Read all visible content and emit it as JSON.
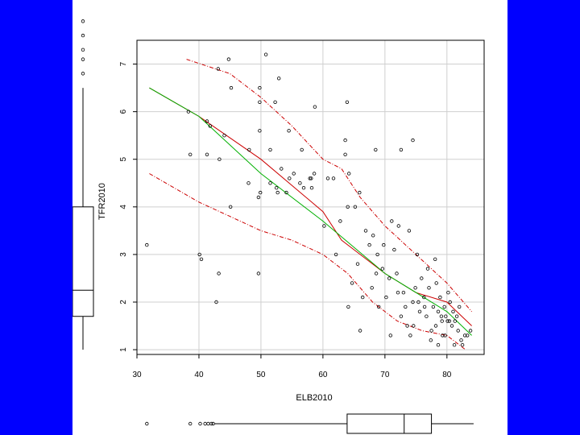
{
  "chart_data": {
    "type": "scatter",
    "xlabel": "ELB2010",
    "ylabel": "TFR2010",
    "xlim": [
      30,
      86
    ],
    "ylim": [
      0.9,
      7.5
    ],
    "xticks": [
      30,
      40,
      50,
      60,
      70,
      80
    ],
    "yticks": [
      1,
      2,
      3,
      4,
      5,
      6,
      7
    ],
    "grid": true,
    "points": [
      [
        44.8,
        7.1
      ],
      [
        50.8,
        7.2
      ],
      [
        45.2,
        6.5
      ],
      [
        49.8,
        6.5
      ],
      [
        49.8,
        6.2
      ],
      [
        52.9,
        6.7
      ],
      [
        52.3,
        6.2
      ],
      [
        38.3,
        6.0
      ],
      [
        41.3,
        5.8
      ],
      [
        41.8,
        5.7
      ],
      [
        43.1,
        6.9
      ],
      [
        58.7,
        6.1
      ],
      [
        63.9,
        6.2
      ],
      [
        38.6,
        5.1
      ],
      [
        41.3,
        5.1
      ],
      [
        43.3,
        5.0
      ],
      [
        44.1,
        5.5
      ],
      [
        48.1,
        5.2
      ],
      [
        49.8,
        5.6
      ],
      [
        51.5,
        5.2
      ],
      [
        53.3,
        4.8
      ],
      [
        54.5,
        5.6
      ],
      [
        56.6,
        5.2
      ],
      [
        57.9,
        4.6
      ],
      [
        63.6,
        5.4
      ],
      [
        63.6,
        5.1
      ],
      [
        68.5,
        5.2
      ],
      [
        72.6,
        5.2
      ],
      [
        74.5,
        5.4
      ],
      [
        45.1,
        4.0
      ],
      [
        48.0,
        4.5
      ],
      [
        49.6,
        4.2
      ],
      [
        49.9,
        4.3
      ],
      [
        51.5,
        4.5
      ],
      [
        52.5,
        4.4
      ],
      [
        52.7,
        4.3
      ],
      [
        54.1,
        4.3
      ],
      [
        54.6,
        4.6
      ],
      [
        55.3,
        4.7
      ],
      [
        56.3,
        4.5
      ],
      [
        56.9,
        4.4
      ],
      [
        58.1,
        4.6
      ],
      [
        58.2,
        4.4
      ],
      [
        58.6,
        4.7
      ],
      [
        60.2,
        3.6
      ],
      [
        60.8,
        4.6
      ],
      [
        61.7,
        4.6
      ],
      [
        62.8,
        3.7
      ],
      [
        64.0,
        4.0
      ],
      [
        64.2,
        4.7
      ],
      [
        65.2,
        4.0
      ],
      [
        65.9,
        4.3
      ],
      [
        31.6,
        3.2
      ],
      [
        40.1,
        3.0
      ],
      [
        40.4,
        2.9
      ],
      [
        42.8,
        2.0
      ],
      [
        43.2,
        2.6
      ],
      [
        49.6,
        2.6
      ],
      [
        62.1,
        3.0
      ],
      [
        64.1,
        1.9
      ],
      [
        64.7,
        2.4
      ],
      [
        66.0,
        1.4
      ],
      [
        66.4,
        2.1
      ],
      [
        66.9,
        3.5
      ],
      [
        67.5,
        3.2
      ],
      [
        67.9,
        2.3
      ],
      [
        68.1,
        3.4
      ],
      [
        68.6,
        2.6
      ],
      [
        69.6,
        2.7
      ],
      [
        69.8,
        3.2
      ],
      [
        70.2,
        2.1
      ],
      [
        70.7,
        2.5
      ],
      [
        71.1,
        3.7
      ],
      [
        71.5,
        3.1
      ],
      [
        71.9,
        2.6
      ],
      [
        72.2,
        3.6
      ],
      [
        72.6,
        1.7
      ],
      [
        73.0,
        2.2
      ],
      [
        73.3,
        1.9
      ],
      [
        73.9,
        3.5
      ],
      [
        74.1,
        1.3
      ],
      [
        74.5,
        2.0
      ],
      [
        74.6,
        1.5
      ],
      [
        75.2,
        3.0
      ],
      [
        75.6,
        1.8
      ],
      [
        76.3,
        2.1
      ],
      [
        76.7,
        1.7
      ],
      [
        77.1,
        2.3
      ],
      [
        77.5,
        1.4
      ],
      [
        77.8,
        1.9
      ],
      [
        78.1,
        2.9
      ],
      [
        78.2,
        1.5
      ],
      [
        78.6,
        1.8
      ],
      [
        78.9,
        2.1
      ],
      [
        79.2,
        1.6
      ],
      [
        79.3,
        1.3
      ],
      [
        79.8,
        1.7
      ],
      [
        80.1,
        1.6
      ],
      [
        80.5,
        2.0
      ],
      [
        80.8,
        1.5
      ],
      [
        81.0,
        1.8
      ],
      [
        81.3,
        1.6
      ],
      [
        81.8,
        1.4
      ],
      [
        82.3,
        1.2
      ],
      [
        82.9,
        1.3
      ],
      [
        83.3,
        1.3
      ],
      [
        79.1,
        1.7
      ],
      [
        79.6,
        1.9
      ],
      [
        80.4,
        1.6
      ],
      [
        81.6,
        1.7
      ],
      [
        75.9,
        2.5
      ],
      [
        76.4,
        1.9
      ],
      [
        74.9,
        2.3
      ],
      [
        73.6,
        1.5
      ],
      [
        70.9,
        1.3
      ],
      [
        69.0,
        1.9
      ],
      [
        65.6,
        2.8
      ],
      [
        68.8,
        3.0
      ],
      [
        72.1,
        2.2
      ],
      [
        82.0,
        1.9
      ],
      [
        83.8,
        1.4
      ],
      [
        78.3,
        2.4
      ],
      [
        80.2,
        2.2
      ],
      [
        77.4,
        1.2
      ],
      [
        79.7,
        1.3
      ],
      [
        81.2,
        1.1
      ],
      [
        82.5,
        1.1
      ],
      [
        76.9,
        2.7
      ],
      [
        75.4,
        2.0
      ],
      [
        78.6,
        1.1
      ]
    ],
    "fit_line": [
      [
        32,
        6.5
      ],
      [
        40,
        5.9
      ],
      [
        50,
        4.7
      ],
      [
        60,
        3.7
      ],
      [
        70,
        2.6
      ],
      [
        80,
        1.8
      ],
      [
        84,
        1.3
      ]
    ],
    "smooth_line": [
      [
        32,
        6.5
      ],
      [
        40,
        5.9
      ],
      [
        50,
        5.0
      ],
      [
        60,
        3.9
      ],
      [
        63,
        3.3
      ],
      [
        66,
        3.0
      ],
      [
        70,
        2.6
      ],
      [
        75,
        2.2
      ],
      [
        80,
        2.0
      ],
      [
        84,
        1.5
      ]
    ],
    "upper_band": [
      [
        38,
        7.1
      ],
      [
        45,
        6.8
      ],
      [
        50,
        6.3
      ],
      [
        55,
        5.7
      ],
      [
        60,
        5.0
      ],
      [
        63,
        4.8
      ],
      [
        66,
        4.2
      ],
      [
        70,
        3.6
      ],
      [
        75,
        3.0
      ],
      [
        80,
        2.4
      ],
      [
        84,
        1.8
      ]
    ],
    "lower_band": [
      [
        32,
        4.7
      ],
      [
        40,
        4.1
      ],
      [
        45,
        3.8
      ],
      [
        50,
        3.5
      ],
      [
        55,
        3.3
      ],
      [
        60,
        3.0
      ],
      [
        64,
        2.6
      ],
      [
        68,
        2.0
      ],
      [
        72,
        1.6
      ],
      [
        76,
        1.4
      ],
      [
        80,
        1.3
      ],
      [
        83,
        1.0
      ]
    ],
    "x_boxplot": {
      "min": 42.5,
      "q1": 63.9,
      "median": 73.1,
      "q3": 77.5,
      "max": 84.3,
      "outliers": [
        31.6,
        38.6,
        40.2,
        41.0,
        41.5,
        42.0,
        42.3
      ]
    },
    "y_boxplot": {
      "min": 1.0,
      "q1": 1.7,
      "median": 2.25,
      "q3": 4.0,
      "max": 6.5,
      "outliers": [
        6.8,
        7.1,
        7.3,
        7.6,
        7.9
      ]
    },
    "colors": {
      "points": "#000000",
      "fit": "#00b000",
      "smooth": "#cc0000",
      "band": "#cc0000",
      "grid": "#cfcfcf",
      "frame": "#0000ff"
    }
  }
}
